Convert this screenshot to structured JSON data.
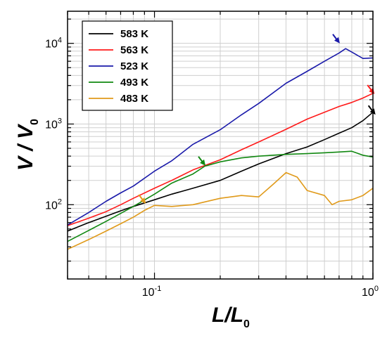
{
  "chart_data": {
    "type": "line",
    "title": "",
    "xlabel": "L/L0",
    "ylabel": "V / V0",
    "xscale": "log",
    "yscale": "log",
    "xlim": [
      0.04,
      1
    ],
    "ylim": [
      12,
      25000
    ],
    "grid": true,
    "legend_position": "top-left",
    "x_ticks": [
      {
        "value": 0.1,
        "base": "10",
        "exp": "-1"
      },
      {
        "value": 1,
        "base": "10",
        "exp": "0"
      }
    ],
    "y_ticks": [
      {
        "value": 100,
        "base": "10",
        "exp": "2"
      },
      {
        "value": 1000,
        "base": "10",
        "exp": "3"
      },
      {
        "value": 10000,
        "base": "10",
        "exp": "4"
      }
    ],
    "series": [
      {
        "name": "583 K",
        "color": "#000000",
        "x": [
          0.04,
          0.05,
          0.06,
          0.07,
          0.08,
          0.1,
          0.12,
          0.15,
          0.2,
          0.25,
          0.3,
          0.4,
          0.5,
          0.6,
          0.7,
          0.8,
          0.9,
          1.0
        ],
        "y": [
          47,
          60,
          72,
          84,
          95,
          115,
          135,
          160,
          200,
          260,
          320,
          430,
          520,
          640,
          770,
          900,
          1100,
          1400
        ],
        "marker_x": 0.99,
        "marker_y": 1500
      },
      {
        "name": "563 K",
        "color": "#ff1a1a",
        "x": [
          0.04,
          0.05,
          0.06,
          0.07,
          0.08,
          0.1,
          0.12,
          0.15,
          0.2,
          0.25,
          0.3,
          0.4,
          0.5,
          0.6,
          0.7,
          0.8,
          0.9,
          1.0
        ],
        "y": [
          55,
          68,
          82,
          100,
          120,
          160,
          200,
          270,
          360,
          480,
          600,
          860,
          1150,
          1400,
          1650,
          1850,
          2100,
          2400
        ],
        "marker_x": 0.98,
        "marker_y": 2700
      },
      {
        "name": "523 K",
        "color": "#1a1aaa",
        "x": [
          0.04,
          0.05,
          0.06,
          0.07,
          0.08,
          0.1,
          0.12,
          0.15,
          0.2,
          0.25,
          0.3,
          0.4,
          0.5,
          0.6,
          0.7,
          0.75,
          0.8,
          0.9,
          1.0
        ],
        "y": [
          56,
          80,
          110,
          140,
          170,
          260,
          350,
          560,
          850,
          1300,
          1800,
          3200,
          4500,
          6000,
          7600,
          8600,
          7800,
          6500,
          6600
        ],
        "marker_x": 0.68,
        "marker_y": 11500
      },
      {
        "name": "493 K",
        "color": "#118811",
        "x": [
          0.04,
          0.05,
          0.06,
          0.07,
          0.08,
          0.1,
          0.12,
          0.15,
          0.17,
          0.2,
          0.25,
          0.3,
          0.4,
          0.5,
          0.6,
          0.7,
          0.8,
          0.9,
          1.0
        ],
        "y": [
          35,
          48,
          62,
          78,
          95,
          135,
          185,
          240,
          300,
          340,
          380,
          400,
          420,
          430,
          440,
          450,
          460,
          410,
          390
        ],
        "marker_x": 0.165,
        "marker_y": 350
      },
      {
        "name": "483 K",
        "color": "#e09a1a",
        "x": [
          0.04,
          0.05,
          0.06,
          0.07,
          0.08,
          0.09,
          0.1,
          0.12,
          0.15,
          0.2,
          0.25,
          0.3,
          0.35,
          0.4,
          0.45,
          0.5,
          0.6,
          0.65,
          0.7,
          0.8,
          0.9,
          1.0
        ],
        "y": [
          28,
          37,
          47,
          58,
          70,
          85,
          98,
          95,
          100,
          120,
          130,
          125,
          180,
          250,
          220,
          150,
          130,
          100,
          110,
          115,
          130,
          160
        ],
        "marker_x": 0.088,
        "marker_y": 118
      }
    ]
  }
}
